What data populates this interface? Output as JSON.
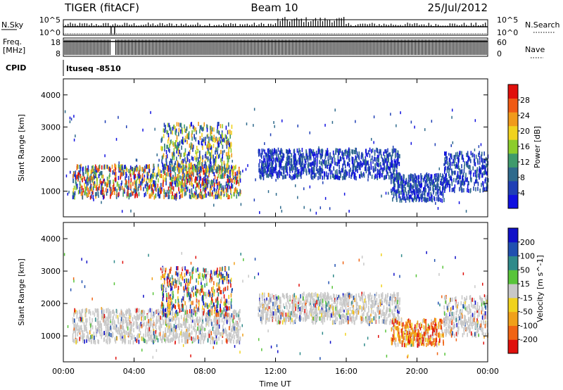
{
  "header": {
    "title_left": "TIGER (fitACF)",
    "title_center": "Beam 10",
    "title_right": "25/Jul/2012"
  },
  "strip_panels": {
    "nsky": {
      "label": "N.Sky",
      "tick_top": "10^5",
      "tick_bottom": "10^0",
      "right_tick_top": "10^5",
      "right_tick_bottom": "10^0",
      "right_label": "N.Search",
      "right_label_style": "dotted"
    },
    "freq": {
      "label_line1": "Freq.",
      "label_line2": "[MHz]",
      "tick_top": "18",
      "tick_bottom": "8",
      "right_tick_top": "60",
      "right_tick_bottom": "0",
      "right_label": "Nave",
      "right_label_style": "dotted"
    },
    "cpid": {
      "label": "CPID",
      "value": "ltuseq -8510"
    }
  },
  "chart_data": [
    {
      "type": "heatmap",
      "parameter": "Power",
      "xlabel": "",
      "ylabel": "Slant Range [km]",
      "x_range_hours": [
        0,
        24
      ],
      "ylim": [
        200,
        4500
      ],
      "y_ticks": [
        1000,
        2000,
        3000,
        4000
      ],
      "colorbar": {
        "label": "Power [dB]",
        "ticks": [
          4,
          8,
          12,
          16,
          20,
          24,
          28
        ],
        "range": [
          0,
          32
        ],
        "colors": [
          "#1010e0",
          "#1f3fb5",
          "#2e6a8c",
          "#3f9a6c",
          "#8ccd2c",
          "#f0d21e",
          "#f09a1a",
          "#f05a14",
          "#e0100c"
        ]
      },
      "scatter_bands": [
        {
          "x": [
            0.5,
            10.0
          ],
          "range": [
            800,
            1800
          ],
          "level": "high"
        },
        {
          "x": [
            5.5,
            9.5
          ],
          "range": [
            1600,
            3100
          ],
          "level": "mid"
        },
        {
          "x": [
            11.0,
            19.0
          ],
          "range": [
            1400,
            2300
          ],
          "level": "low"
        },
        {
          "x": [
            18.5,
            21.5
          ],
          "range": [
            700,
            1500
          ],
          "level": "low"
        },
        {
          "x": [
            21.5,
            24.0
          ],
          "range": [
            1000,
            2200
          ],
          "level": "low"
        }
      ]
    },
    {
      "type": "heatmap",
      "parameter": "Velocity",
      "xlabel": "Time UT",
      "ylabel": "Slant Range [km]",
      "x_range_hours": [
        0,
        24
      ],
      "x_ticks": [
        "00:00",
        "04:00",
        "08:00",
        "12:00",
        "16:00",
        "20:00",
        "00:00"
      ],
      "ylim": [
        200,
        4500
      ],
      "y_ticks": [
        1000,
        2000,
        3000,
        4000
      ],
      "colorbar": {
        "label": "Velocity [m s^-1]",
        "ticks": [
          200,
          100,
          50,
          15,
          -15,
          -50,
          -100,
          -200
        ],
        "colors": [
          "#1010c8",
          "#2050b0",
          "#2f8a8a",
          "#58c43a",
          "#c8c8c8",
          "#f0d21e",
          "#f0a01a",
          "#f06414",
          "#e0100c"
        ]
      },
      "scatter_bands": [
        {
          "x": [
            0.5,
            10.0
          ],
          "range": [
            800,
            1800
          ],
          "level": "near-zero"
        },
        {
          "x": [
            5.5,
            9.5
          ],
          "range": [
            1600,
            3100
          ],
          "level": "mixed"
        },
        {
          "x": [
            11.0,
            19.0
          ],
          "range": [
            1400,
            2300
          ],
          "level": "near-zero"
        },
        {
          "x": [
            18.5,
            21.5
          ],
          "range": [
            700,
            1500
          ],
          "level": "negative"
        },
        {
          "x": [
            21.5,
            24.0
          ],
          "range": [
            1000,
            2200
          ],
          "level": "near-zero"
        }
      ]
    }
  ]
}
